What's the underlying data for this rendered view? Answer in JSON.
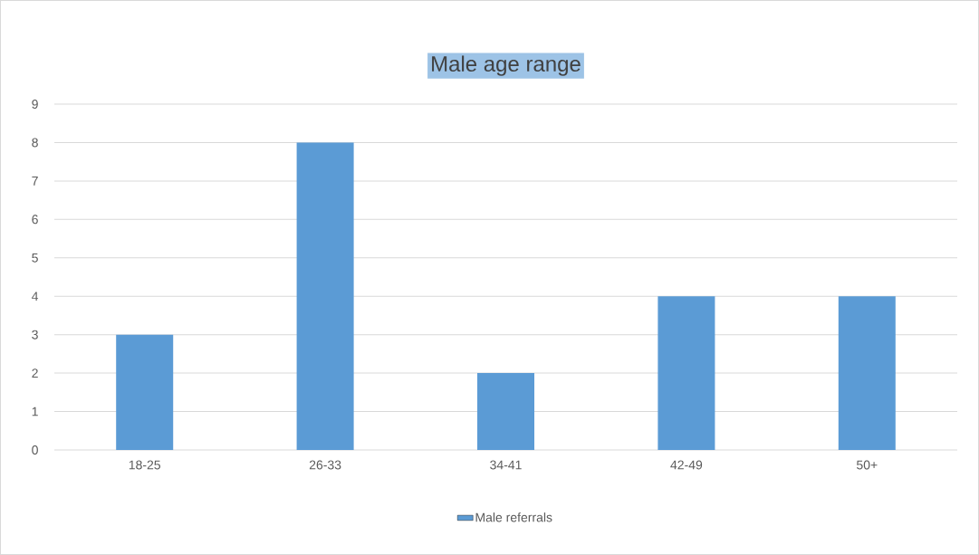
{
  "chart_data": {
    "type": "bar",
    "title": "Male age range",
    "categories": [
      "18-25",
      "26-33",
      "34-41",
      "42-49",
      "50+"
    ],
    "series": [
      {
        "name": "Male referrals",
        "color": "#5b9bd5",
        "values": [
          3,
          8,
          2,
          4,
          4
        ]
      }
    ],
    "ylim": [
      0,
      9
    ],
    "yticks": [
      0,
      1,
      2,
      3,
      4,
      5,
      6,
      7,
      8,
      9
    ],
    "grid": "y",
    "legend": "bottom"
  }
}
